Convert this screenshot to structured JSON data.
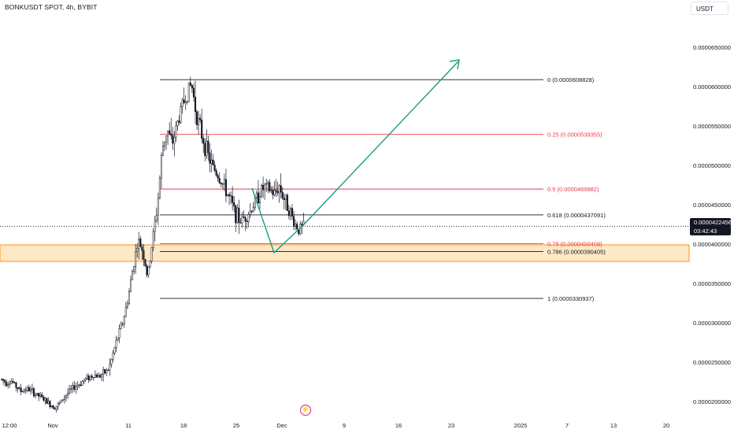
{
  "header": {
    "symbol_title": "BONKUSDT SPOT, 4h, BYBIT",
    "currency_button": "USDT"
  },
  "price_tag": {
    "price": "0.0000422456",
    "countdown": "03:42:43"
  },
  "logo_icon": "lightning-bolt-icon",
  "colors": {
    "candle": "#131722",
    "fib_neutral": "#131722",
    "fib_red": "#e8394f",
    "zone_fill": "#ffe0b2",
    "zone_border": "#f7931a",
    "arrow": "#179c84",
    "price_tag_bg": "#131722"
  },
  "chart_data": {
    "type": "candlestick",
    "x_tick_labels": [
      "12:00",
      "Nov",
      "11",
      "18",
      "25",
      "Dec",
      "9",
      "16",
      "23",
      "2025",
      "7",
      "13",
      "20"
    ],
    "y_tick_labels": [
      "0.0000650000",
      "0.0000600000",
      "0.0000550000",
      "0.0000500000",
      "0.0000450000",
      "0.0000400000",
      "0.0000350000",
      "0.0000300000",
      "0.0000250000",
      "0.0000200000"
    ],
    "y_ticks": [
      6.5e-05,
      6e-05,
      5.5e-05,
      5e-05,
      4.5e-05,
      4e-05,
      3.5e-05,
      3e-05,
      2.5e-05,
      2e-05
    ],
    "ylim": [
      1.84e-05,
      7.02e-05
    ],
    "last_price": 4.22456e-05,
    "fib_levels": [
      {
        "label": "0 (0.0000608828)",
        "value": 6.08828e-05,
        "color": "neutral"
      },
      {
        "label": "0.25 (0.0000539355)",
        "value": 5.39355e-05,
        "color": "red"
      },
      {
        "label": "0.5 (0.0000469882)",
        "value": 4.69882e-05,
        "color": "red"
      },
      {
        "label": "0.618 (0.0000437091)",
        "value": 4.37091e-05,
        "color": "neutral"
      },
      {
        "label": "0.75 (0.0000400409)",
        "value": 4.00409e-05,
        "color": "red"
      },
      {
        "label": "0.786 (0.0000390405)",
        "value": 3.90405e-05,
        "color": "neutral"
      },
      {
        "label": "1 (0.0000330937)",
        "value": 3.30937e-05,
        "color": "neutral"
      }
    ],
    "support_zone": [
      3.78e-05,
      3.99e-05
    ],
    "price_path": [
      2.28e-05,
      2.24e-05,
      2.26e-05,
      2.19e-05,
      2.13e-05,
      2.16e-05,
      2.14e-05,
      2.09e-05,
      2.06e-05,
      2.01e-05,
      1.96e-05,
      1.93e-05,
      1.98e-05,
      2.07e-05,
      2.13e-05,
      2.19e-05,
      2.22e-05,
      2.28e-05,
      2.31e-05,
      2.34e-05,
      2.32e-05,
      2.36e-05,
      2.41e-05,
      2.63e-05,
      2.85e-05,
      3.03e-05,
      3.32e-05,
      3.71e-05,
      4.04e-05,
      3.92e-05,
      3.57e-05,
      4.05e-05,
      4.48e-05,
      5.21e-05,
      5.46e-05,
      5.26e-05,
      5.51e-05,
      5.74e-05,
      5.91e-05,
      6.03e-05,
      5.66e-05,
      5.41e-05,
      5.21e-05,
      5.02e-05,
      4.92e-05,
      4.81e-05,
      4.69e-05,
      4.55e-05,
      4.39e-05,
      4.29e-05,
      4.35e-05,
      4.41e-05,
      4.53e-05,
      4.66e-05,
      4.72e-05,
      4.69e-05,
      4.63e-05,
      4.74e-05,
      4.58e-05,
      4.46e-05,
      4.28e-05,
      4.19e-05,
      4.22e-05
    ]
  }
}
